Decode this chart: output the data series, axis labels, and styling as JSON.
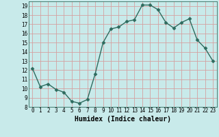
{
  "x": [
    0,
    1,
    2,
    3,
    4,
    5,
    6,
    7,
    8,
    9,
    10,
    11,
    12,
    13,
    14,
    15,
    16,
    17,
    18,
    19,
    20,
    21,
    22,
    23
  ],
  "y": [
    12.2,
    10.2,
    10.5,
    9.9,
    9.6,
    8.6,
    8.4,
    8.8,
    11.6,
    15.0,
    16.5,
    16.7,
    17.3,
    17.5,
    19.1,
    19.1,
    18.6,
    17.2,
    16.6,
    17.2,
    17.6,
    15.3,
    14.4,
    13.0
  ],
  "xlabel": "Humidex (Indice chaleur)",
  "line_color": "#2d6b5e",
  "marker_color": "#2d6b5e",
  "bg_color": "#c8eaea",
  "grid_major_color": "#d4a0a0",
  "grid_minor_color": "#c8eaea",
  "xlim": [
    -0.5,
    23.5
  ],
  "ylim": [
    8,
    19.5
  ],
  "yticks": [
    8,
    9,
    10,
    11,
    12,
    13,
    14,
    15,
    16,
    17,
    18,
    19
  ],
  "xticks": [
    0,
    1,
    2,
    3,
    4,
    5,
    6,
    7,
    8,
    9,
    10,
    11,
    12,
    13,
    14,
    15,
    16,
    17,
    18,
    19,
    20,
    21,
    22,
    23
  ],
  "tick_fontsize": 5.5,
  "xlabel_fontsize": 7,
  "marker_size": 2.5,
  "line_width": 1.0
}
